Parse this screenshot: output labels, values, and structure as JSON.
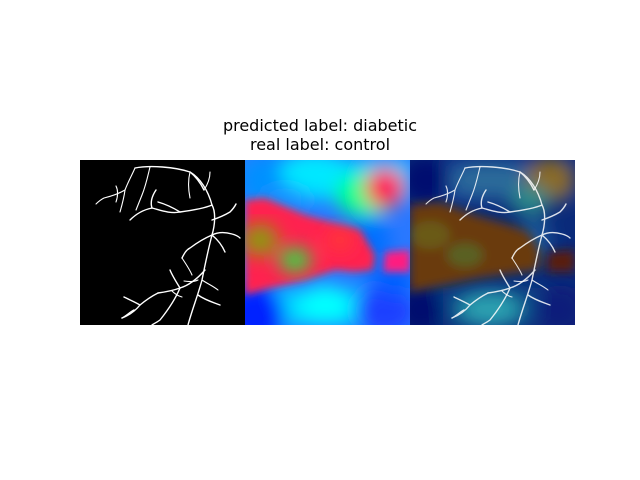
{
  "title": {
    "predicted_line": "predicted label: diabetic",
    "real_line": "real label: control"
  },
  "panels": [
    {
      "id": "vessel-segmentation",
      "content": "binary retinal vessel map, white vessels on black"
    },
    {
      "id": "attention-heatmap",
      "content": "hsv-style activation heatmap"
    },
    {
      "id": "heatmap-overlay",
      "content": "jet-style heatmap blended with vessel map"
    }
  ],
  "colors": {
    "background": "#ffffff",
    "vessel": "#ffffff",
    "vessel_bg": "#000000",
    "heat_red": "#ff1a4a",
    "heat_cyan": "#00e0ff",
    "heat_blue": "#0030ff",
    "heat_green": "#33cc33",
    "overlay_navy": "#000a6e",
    "overlay_brown": "#6a3a10"
  }
}
